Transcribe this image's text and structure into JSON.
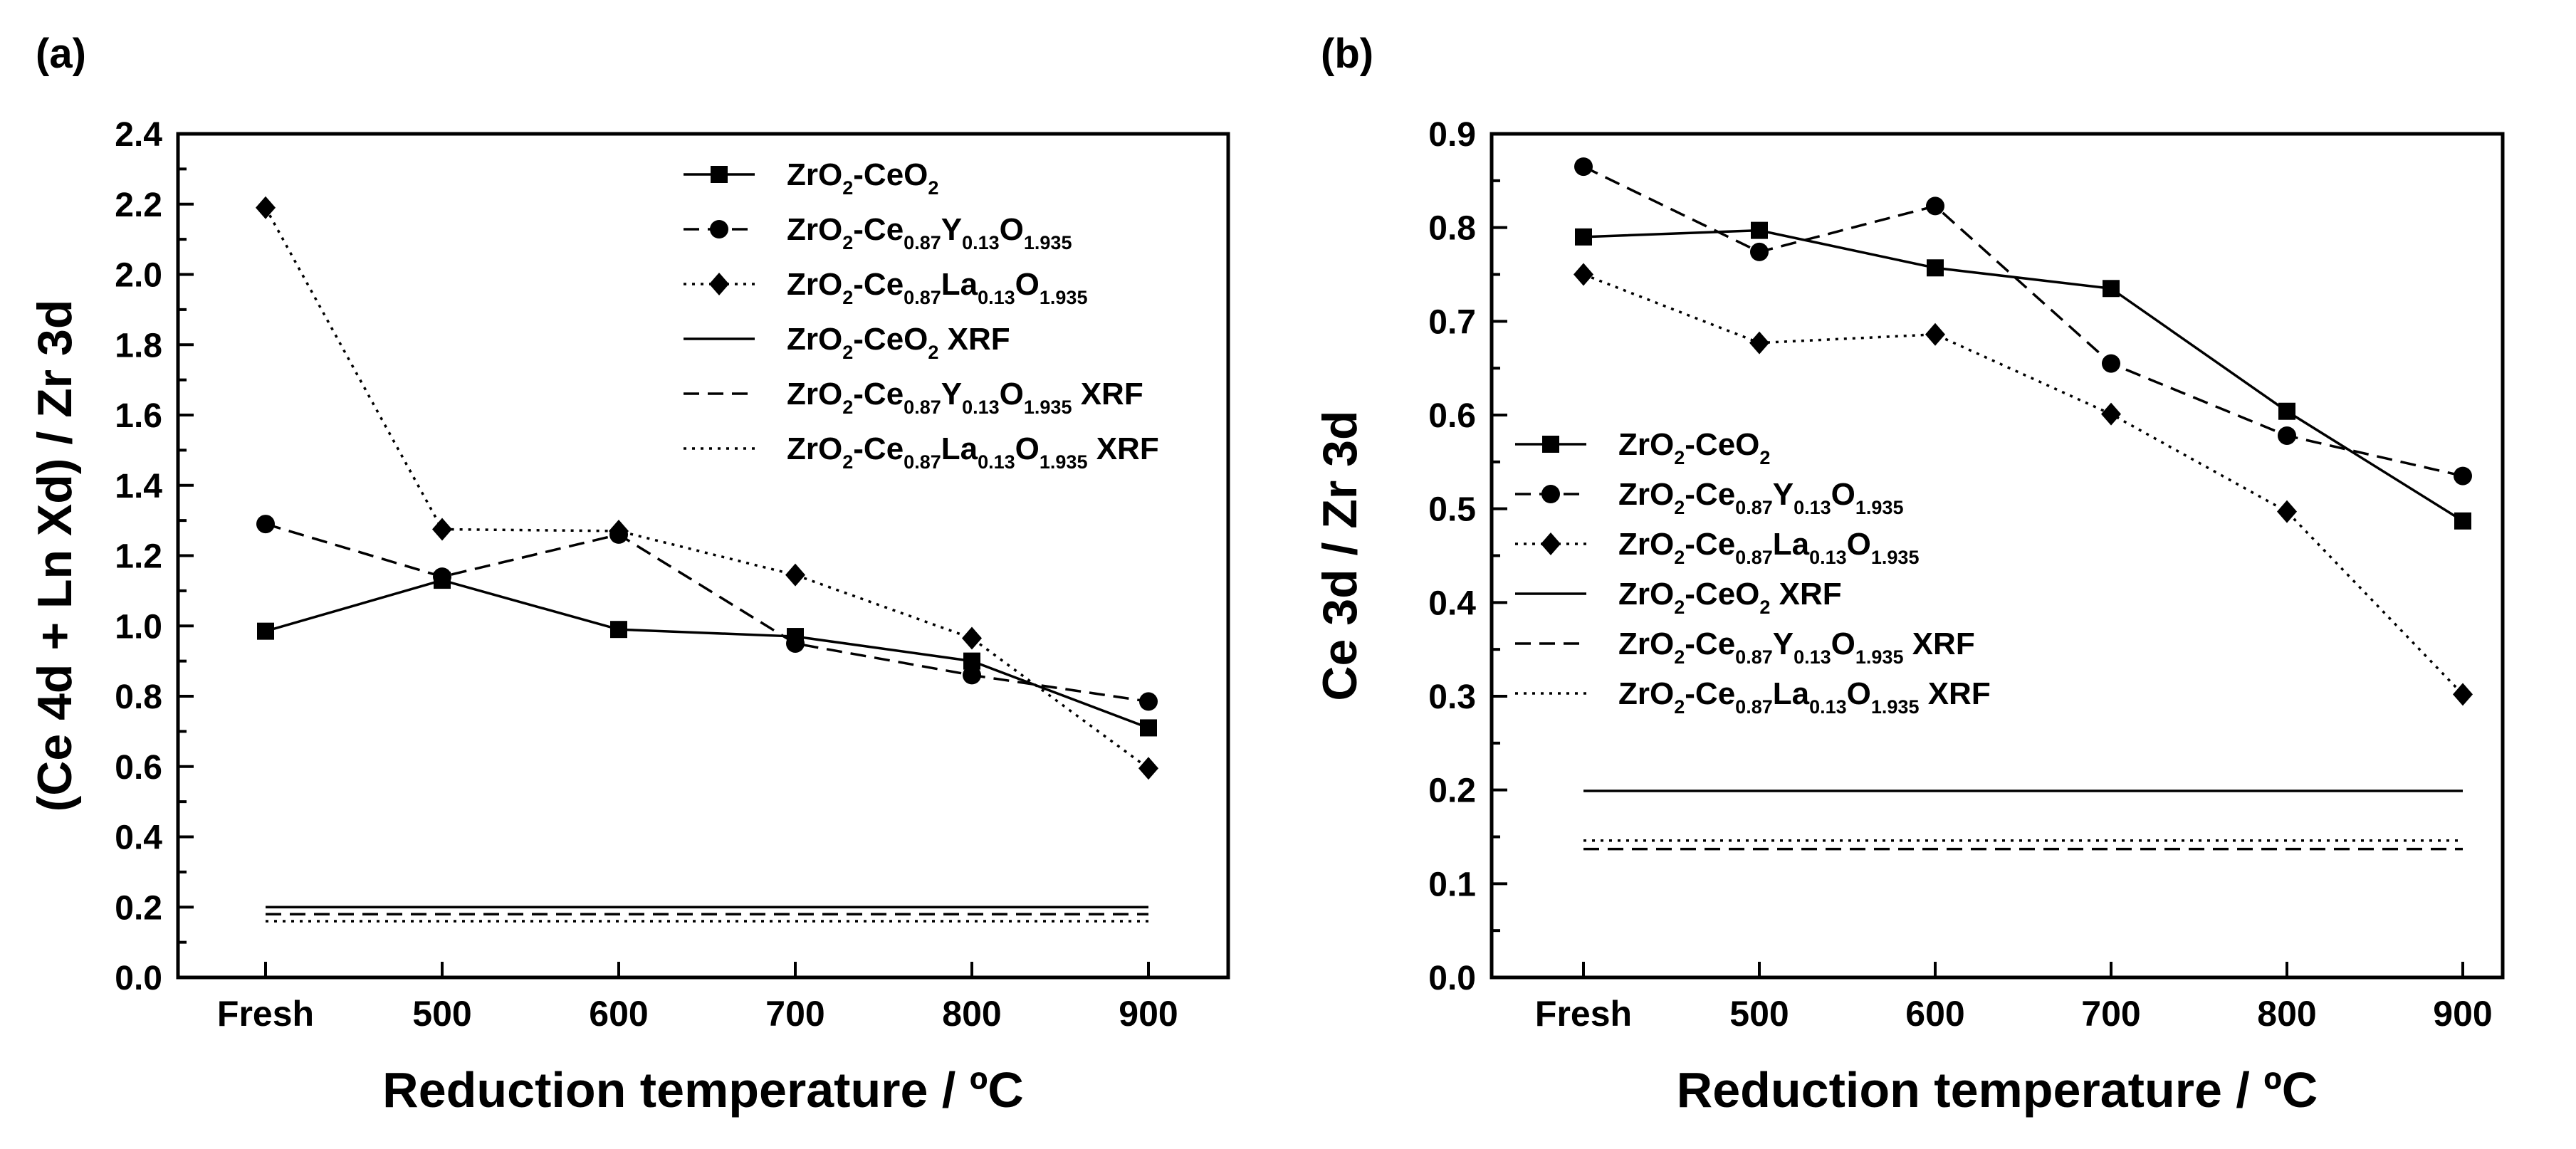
{
  "chart_data": [
    {
      "panel_label": "(a)",
      "type": "line",
      "xlabel": "Reduction temperature / ºC",
      "ylabel": "(Ce 4d + Ln Xd) / Zr 3d",
      "categories": [
        "Fresh",
        "500",
        "600",
        "700",
        "800",
        "900"
      ],
      "ylim": [
        0.0,
        2.4
      ],
      "yticks": [
        "0.0",
        "0.2",
        "0.4",
        "0.6",
        "0.8",
        "1.0",
        "1.2",
        "1.4",
        "1.6",
        "1.8",
        "2.0",
        "2.2",
        "2.4"
      ],
      "legend_position": "top-right",
      "series": [
        {
          "name": "ZrO2-CeO2",
          "label_parts": [
            [
              "ZrO",
              ""
            ],
            [
              "2",
              "sub"
            ],
            [
              "-CeO",
              ""
            ],
            [
              "2",
              "sub"
            ]
          ],
          "marker": "square",
          "dash": "solid",
          "values": [
            0.985,
            1.13,
            0.99,
            0.97,
            0.9,
            0.71
          ]
        },
        {
          "name": "ZrO2-Ce0.87Y0.13O1.935",
          "label_parts": [
            [
              "ZrO",
              ""
            ],
            [
              "2",
              "sub"
            ],
            [
              "-Ce",
              ""
            ],
            [
              "0.87",
              "sub"
            ],
            [
              "Y",
              ""
            ],
            [
              "0.13",
              "sub"
            ],
            [
              "O",
              ""
            ],
            [
              "1.935",
              "sub"
            ]
          ],
          "marker": "circle",
          "dash": "dashed",
          "values": [
            1.29,
            1.14,
            1.26,
            0.95,
            0.86,
            0.785
          ]
        },
        {
          "name": "ZrO2-Ce0.87La0.13O1.935",
          "label_parts": [
            [
              "ZrO",
              ""
            ],
            [
              "2",
              "sub"
            ],
            [
              "-Ce",
              ""
            ],
            [
              "0.87",
              "sub"
            ],
            [
              "La",
              ""
            ],
            [
              "0.13",
              "sub"
            ],
            [
              "O",
              ""
            ],
            [
              "1.935",
              "sub"
            ]
          ],
          "marker": "diamond",
          "dash": "dotted",
          "values": [
            2.19,
            1.275,
            1.27,
            1.145,
            0.965,
            0.595
          ]
        },
        {
          "name": "ZrO2-CeO2 XRF",
          "label_parts": [
            [
              "ZrO",
              ""
            ],
            [
              "2",
              "sub"
            ],
            [
              "-CeO",
              ""
            ],
            [
              "2",
              "sub"
            ],
            [
              " XRF",
              ""
            ]
          ],
          "marker": "none",
          "dash": "solid",
          "values": [
            0.2,
            0.2,
            0.2,
            0.2,
            0.2,
            0.2
          ]
        },
        {
          "name": "ZrO2-Ce0.87Y0.13O1.935 XRF",
          "label_parts": [
            [
              "ZrO",
              ""
            ],
            [
              "2",
              "sub"
            ],
            [
              "-Ce",
              ""
            ],
            [
              "0.87",
              "sub"
            ],
            [
              "Y",
              ""
            ],
            [
              "0.13",
              "sub"
            ],
            [
              "O",
              ""
            ],
            [
              "1.935",
              "sub"
            ],
            [
              " XRF",
              ""
            ]
          ],
          "marker": "none",
          "dash": "dashed",
          "values": [
            0.18,
            0.18,
            0.18,
            0.18,
            0.18,
            0.18
          ]
        },
        {
          "name": "ZrO2-Ce0.87La0.13O1.935 XRF",
          "label_parts": [
            [
              "ZrO",
              ""
            ],
            [
              "2",
              "sub"
            ],
            [
              "-Ce",
              ""
            ],
            [
              "0.87",
              "sub"
            ],
            [
              "La",
              ""
            ],
            [
              "0.13",
              "sub"
            ],
            [
              "O",
              ""
            ],
            [
              "1.935",
              "sub"
            ],
            [
              " XRF",
              ""
            ]
          ],
          "marker": "none",
          "dash": "dotted",
          "values": [
            0.16,
            0.16,
            0.16,
            0.16,
            0.16,
            0.16
          ]
        }
      ]
    },
    {
      "panel_label": "(b)",
      "type": "line",
      "xlabel": "Reduction temperature / ºC",
      "ylabel": "Ce 3d / Zr 3d",
      "categories": [
        "Fresh",
        "500",
        "600",
        "700",
        "800",
        "900"
      ],
      "ylim": [
        0.0,
        0.9
      ],
      "yticks": [
        "0.0",
        "0.1",
        "0.2",
        "0.3",
        "0.4",
        "0.5",
        "0.6",
        "0.7",
        "0.8",
        "0.9"
      ],
      "legend_position": "middle-left",
      "series": [
        {
          "name": "ZrO2-CeO2",
          "label_parts": [
            [
              "ZrO",
              ""
            ],
            [
              "2",
              "sub"
            ],
            [
              "-CeO",
              ""
            ],
            [
              "2",
              "sub"
            ]
          ],
          "marker": "square",
          "dash": "solid",
          "values": [
            0.79,
            0.797,
            0.757,
            0.735,
            0.604,
            0.487
          ]
        },
        {
          "name": "ZrO2-Ce0.87Y0.13O1.935",
          "label_parts": [
            [
              "ZrO",
              ""
            ],
            [
              "2",
              "sub"
            ],
            [
              "-Ce",
              ""
            ],
            [
              "0.87",
              "sub"
            ],
            [
              "Y",
              ""
            ],
            [
              "0.13",
              "sub"
            ],
            [
              "O",
              ""
            ],
            [
              "1.935",
              "sub"
            ]
          ],
          "marker": "circle",
          "dash": "dashed",
          "values": [
            0.865,
            0.774,
            0.823,
            0.655,
            0.578,
            0.535
          ]
        },
        {
          "name": "ZrO2-Ce0.87La0.13O1.935",
          "label_parts": [
            [
              "ZrO",
              ""
            ],
            [
              "2",
              "sub"
            ],
            [
              "-Ce",
              ""
            ],
            [
              "0.87",
              "sub"
            ],
            [
              "La",
              ""
            ],
            [
              "0.13",
              "sub"
            ],
            [
              "O",
              ""
            ],
            [
              "1.935",
              "sub"
            ]
          ],
          "marker": "diamond",
          "dash": "dotted",
          "values": [
            0.75,
            0.677,
            0.686,
            0.601,
            0.497,
            0.302
          ]
        },
        {
          "name": "ZrO2-CeO2 XRF",
          "label_parts": [
            [
              "ZrO",
              ""
            ],
            [
              "2",
              "sub"
            ],
            [
              "-CeO",
              ""
            ],
            [
              "2",
              "sub"
            ],
            [
              " XRF",
              ""
            ]
          ],
          "marker": "none",
          "dash": "solid",
          "values": [
            0.199,
            0.199,
            0.199,
            0.199,
            0.199,
            0.199
          ]
        },
        {
          "name": "ZrO2-Ce0.87Y0.13O1.935 XRF",
          "label_parts": [
            [
              "ZrO",
              ""
            ],
            [
              "2",
              "sub"
            ],
            [
              "-Ce",
              ""
            ],
            [
              "0.87",
              "sub"
            ],
            [
              "Y",
              ""
            ],
            [
              "0.13",
              "sub"
            ],
            [
              "O",
              ""
            ],
            [
              "1.935",
              "sub"
            ],
            [
              " XRF",
              ""
            ]
          ],
          "marker": "none",
          "dash": "dashed",
          "values": [
            0.137,
            0.137,
            0.137,
            0.137,
            0.137,
            0.137
          ]
        },
        {
          "name": "ZrO2-Ce0.87La0.13O1.935 XRF",
          "label_parts": [
            [
              "ZrO",
              ""
            ],
            [
              "2",
              "sub"
            ],
            [
              "-Ce",
              ""
            ],
            [
              "0.87",
              "sub"
            ],
            [
              "La",
              ""
            ],
            [
              "0.13",
              "sub"
            ],
            [
              "O",
              ""
            ],
            [
              "1.935",
              "sub"
            ],
            [
              " XRF",
              ""
            ]
          ],
          "marker": "none",
          "dash": "dotted",
          "values": [
            0.146,
            0.146,
            0.146,
            0.146,
            0.146,
            0.146
          ]
        }
      ]
    }
  ]
}
